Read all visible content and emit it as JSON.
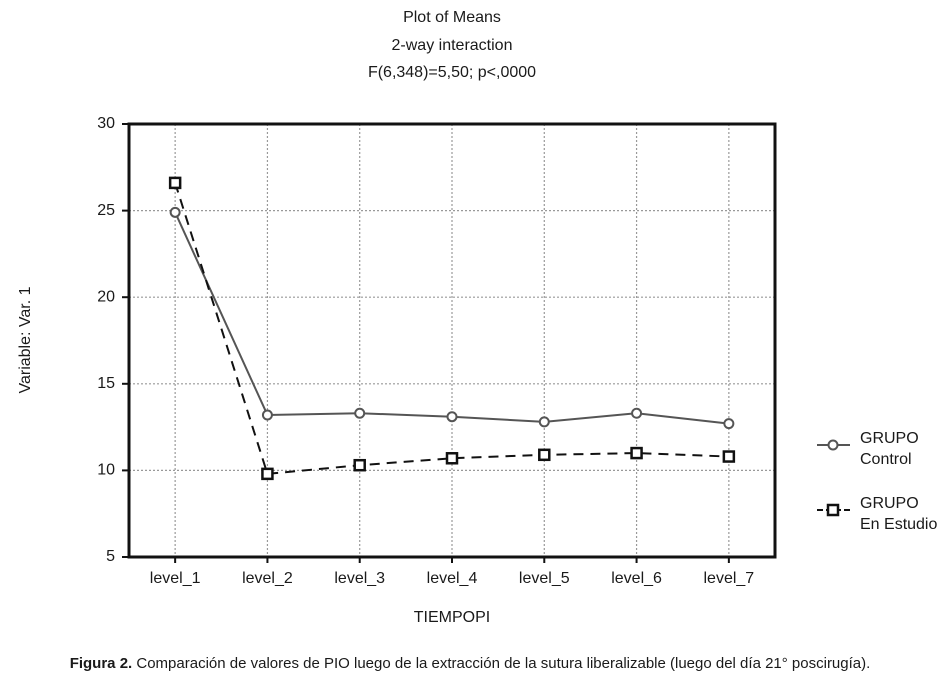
{
  "chart_data": {
    "type": "line",
    "title": "Plot of Means",
    "subtitle": "2-way interaction",
    "annotation": "F(6,348)=5,50; p<,0000",
    "x_label": "TIEMPOPI",
    "y_label": "Variable: Var. 1",
    "categories": [
      "level_1",
      "level_2",
      "level_3",
      "level_4",
      "level_5",
      "level_6",
      "level_7"
    ],
    "series": [
      {
        "name": "GRUPO\nControl",
        "color": "#555555",
        "line_style": "solid",
        "marker": "circle",
        "values": [
          24.9,
          13.2,
          13.3,
          13.1,
          12.8,
          13.3,
          12.7
        ]
      },
      {
        "name": "GRUPO\nEn Estudio",
        "color": "#111111",
        "line_style": "dashed",
        "marker": "square",
        "values": [
          26.6,
          9.8,
          10.3,
          10.7,
          10.9,
          11.0,
          10.8
        ]
      }
    ],
    "ylim": [
      5,
      30
    ],
    "yticks": [
      5,
      10,
      15,
      20,
      25,
      30
    ],
    "grid": true,
    "legend": "right"
  },
  "caption": {
    "label": "Figura 2.",
    "text": " Comparación de valores de PIO luego de la extracción de la sutura liberalizable (luego del día 21° poscirugía)."
  }
}
